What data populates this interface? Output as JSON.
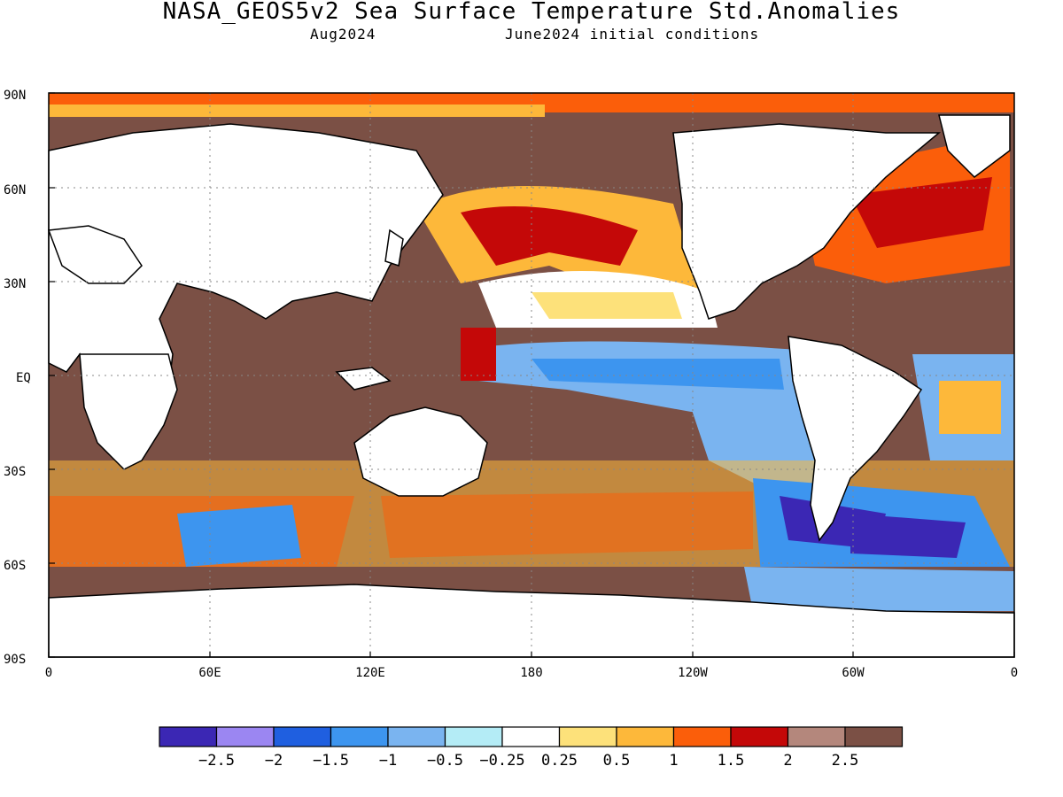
{
  "header": {
    "title": "NASA_GEOS5v2 Sea Surface Temperature Std.Anomalies",
    "valid_month": "Aug2024",
    "init": "June2024 initial conditions"
  },
  "map": {
    "projection": "equirectangular",
    "lon_range": [
      0,
      360
    ],
    "lat_range": [
      -90,
      90
    ],
    "lat_ticks": [
      "90N",
      "60N",
      "30N",
      "EQ",
      "30S",
      "60S",
      "90S"
    ],
    "lon_ticks": [
      "0",
      "60E",
      "120E",
      "180",
      "120W",
      "60W",
      "0"
    ],
    "grid": "dotted",
    "land_color": "#ffffff"
  },
  "colorbar": {
    "colors": [
      "#3b27b4",
      "#9b86f2",
      "#1f5fe0",
      "#3d95ef",
      "#7ab4f0",
      "#b4ecf6",
      "#ffffff",
      "#fde17a",
      "#fdb83a",
      "#fb5e0a",
      "#c40808",
      "#b4877c",
      "#7b5045"
    ],
    "labels": [
      "-2.5",
      "-2",
      "-1.5",
      "-1",
      "-0.5",
      "-0.25",
      "0.25",
      "0.5",
      "1",
      "1.5",
      "2",
      "2.5"
    ]
  }
}
